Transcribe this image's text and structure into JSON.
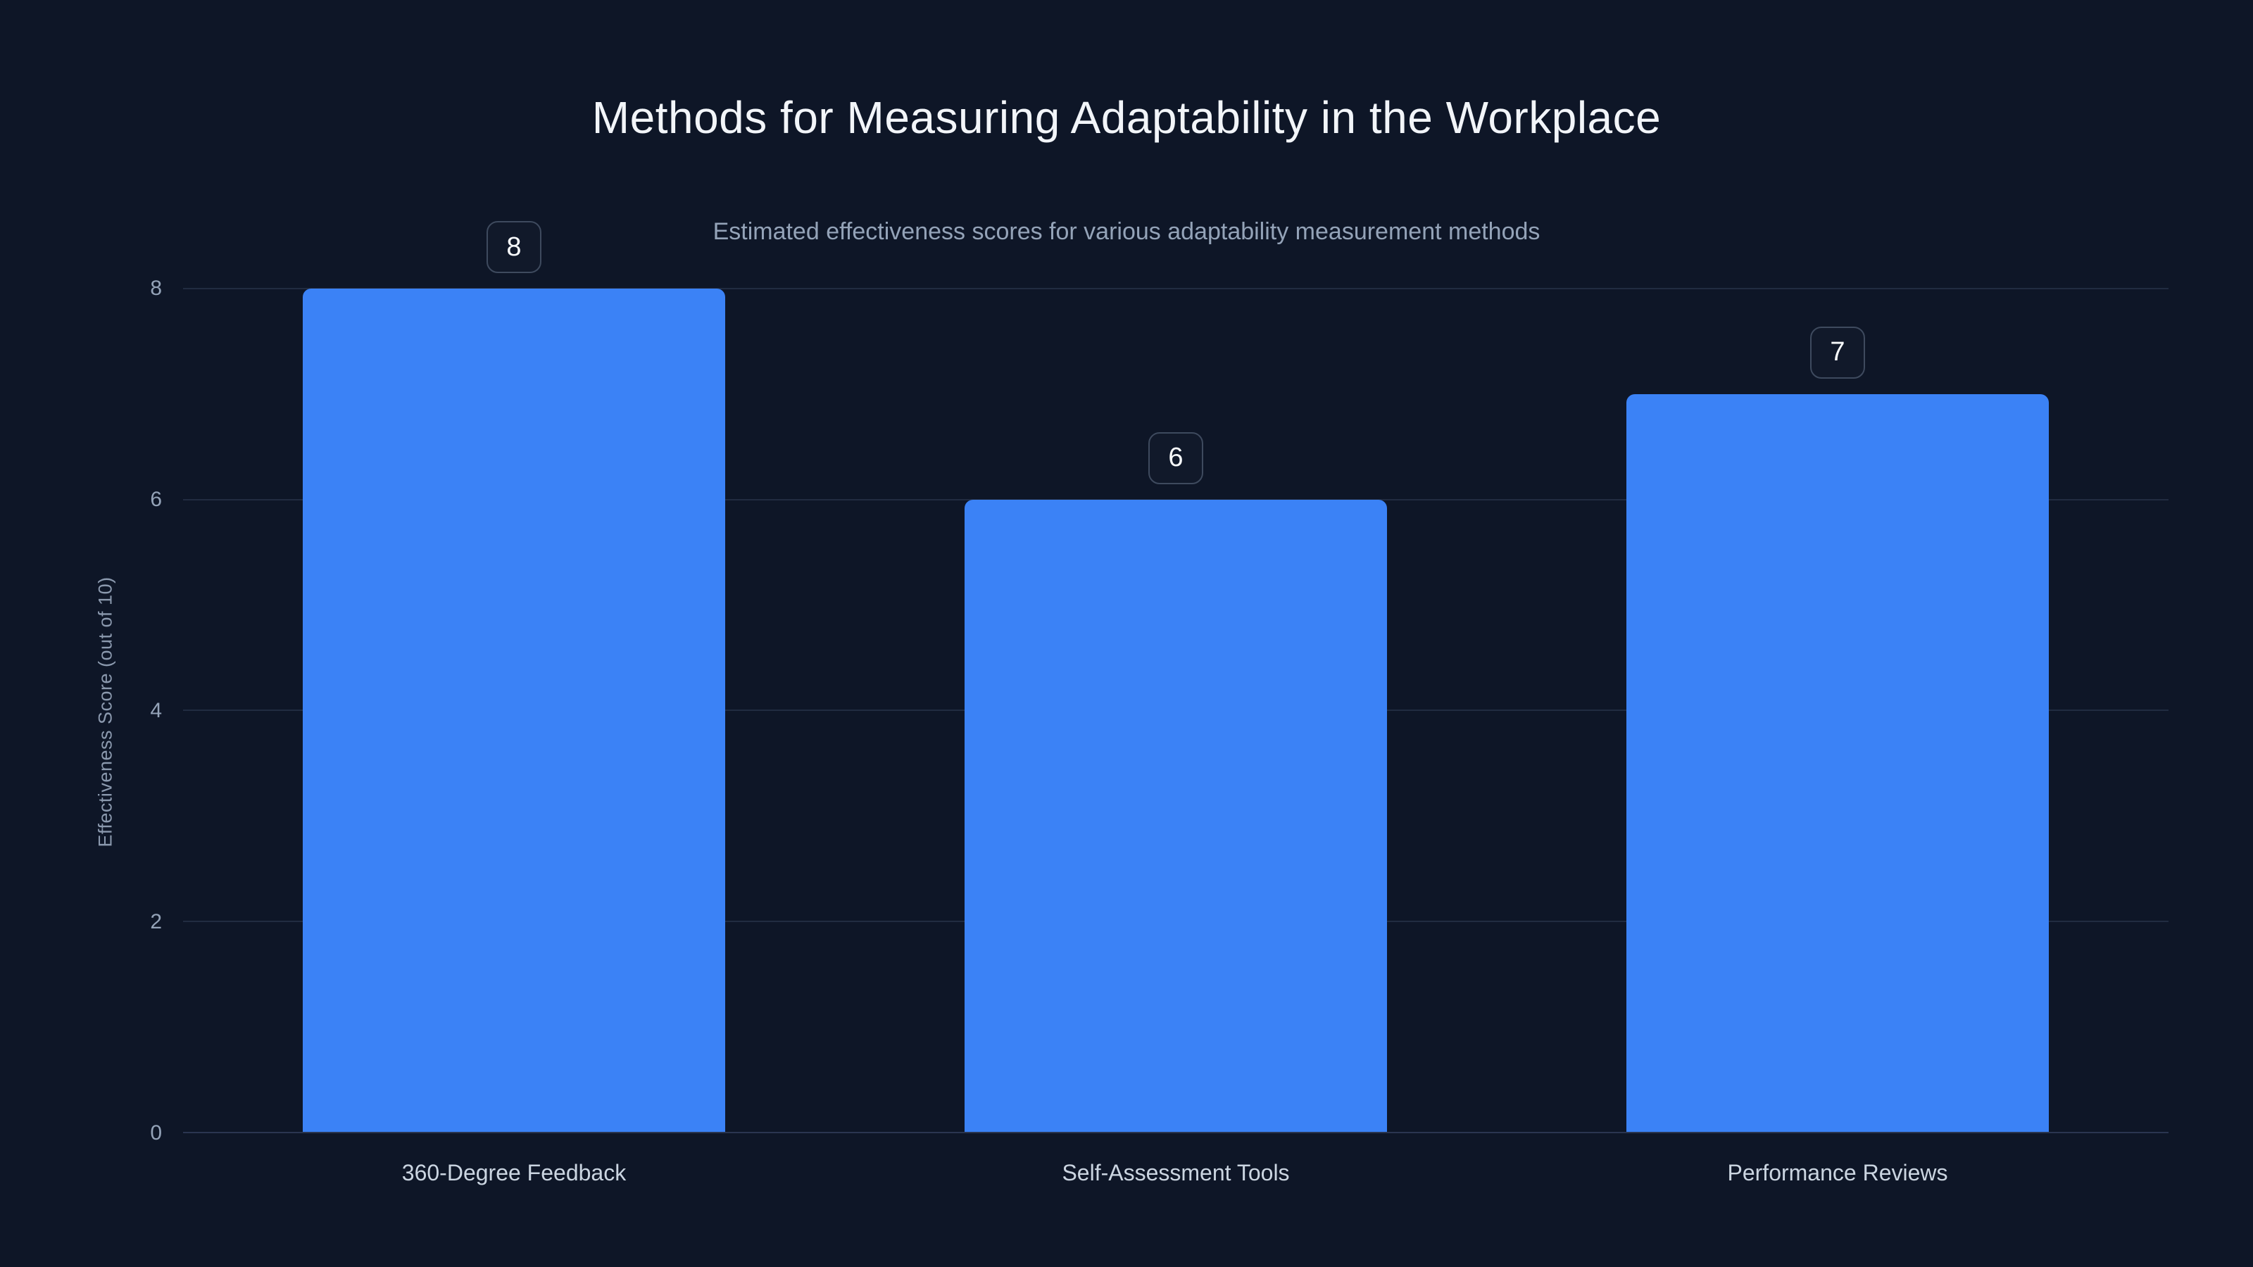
{
  "chart_data": {
    "type": "bar",
    "title": "Methods for Measuring Adaptability in the Workplace",
    "subtitle": "Estimated effectiveness scores for various adaptability measurement methods",
    "categories": [
      "360-Degree Feedback",
      "Self-Assessment Tools",
      "Performance Reviews"
    ],
    "values": [
      8,
      6,
      7
    ],
    "value_labels": [
      8,
      6,
      7
    ],
    "xlabel": "",
    "ylabel": "Effectiveness Score (out of 10)",
    "ylim": [
      0,
      8
    ],
    "yticks": [
      0,
      2,
      4,
      6,
      8
    ],
    "grid": true,
    "legend": false
  },
  "colors": {
    "background": "#0e1627",
    "bar_fill": "#3b82f6",
    "gridline": "#212c41",
    "axis_line": "#2a3550",
    "title_text": "#f2f5f9",
    "subtitle_text": "#94a3b8",
    "tick_text": "#94a3b8",
    "category_text": "#cbd5e1",
    "badge_border": "#3e4a5e",
    "badge_text": "#f8fafc"
  }
}
